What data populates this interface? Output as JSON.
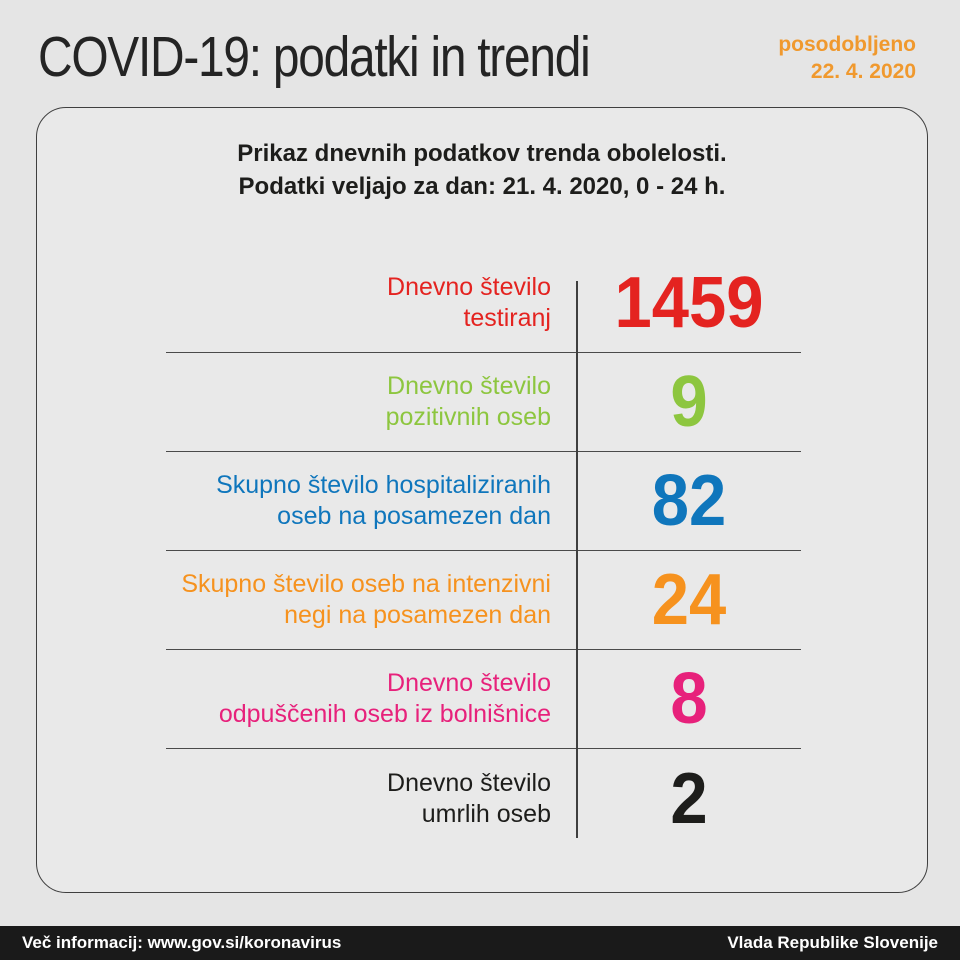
{
  "page": {
    "title": "COVID-19: podatki in trendi",
    "updated_label": "posodobljeno",
    "updated_date": "22. 4. 2020",
    "updated_color": "#f0992e"
  },
  "card": {
    "header_lines": [
      "Prikaz dnevnih podatkov trenda obolelosti.",
      "Podatki veljajo za dan: 21. 4. 2020, 0 - 24 h."
    ],
    "rows": [
      {
        "label_lines": [
          "Dnevno število",
          "testiranj"
        ],
        "value": "1459",
        "color": "#e42320"
      },
      {
        "label_lines": [
          "Dnevno število",
          "pozitivnih oseb"
        ],
        "value": "9",
        "color": "#8dc63f"
      },
      {
        "label_lines": [
          "Skupno število hospitaliziranih",
          "oseb na posamezen dan"
        ],
        "value": "82",
        "color": "#0f76bc"
      },
      {
        "label_lines": [
          "Skupno število oseb na intenzivni",
          "negi na posamezen dan"
        ],
        "value": "24",
        "color": "#f6921e"
      },
      {
        "label_lines": [
          "Dnevno število",
          "odpuščenih oseb iz bolnišnice"
        ],
        "value": "8",
        "color": "#e7217b"
      },
      {
        "label_lines": [
          "Dnevno število",
          "umrlih oseb"
        ],
        "value": "2",
        "color": "#1d1d1b"
      }
    ]
  },
  "footer": {
    "left": "Več informacij: www.gov.si/koronavirus",
    "right": "Vlada Republike Slovenije",
    "background": "#1a1a1a"
  },
  "chart_data": {
    "type": "table",
    "title": "COVID-19: podatki in trendi",
    "subtitle": "Prikaz dnevnih podatkov trenda obolelosti. Podatki veljajo za dan: 21. 4. 2020, 0 - 24 h.",
    "updated": "posodobljeno 22. 4. 2020",
    "categories": [
      "Dnevno število testiranj",
      "Dnevno število pozitivnih oseb",
      "Skupno število hospitaliziranih oseb na posamezen dan",
      "Skupno število oseb na intenzivni negi na posamezen dan",
      "Dnevno število odpuščenih oseb iz bolnišnice",
      "Dnevno število umrlih oseb"
    ],
    "values": [
      1459,
      9,
      82,
      24,
      8,
      2
    ],
    "value_colors": [
      "#e42320",
      "#8dc63f",
      "#0f76bc",
      "#f6921e",
      "#e7217b",
      "#1d1d1b"
    ],
    "legend_position": "none",
    "grid": "row-separators"
  }
}
